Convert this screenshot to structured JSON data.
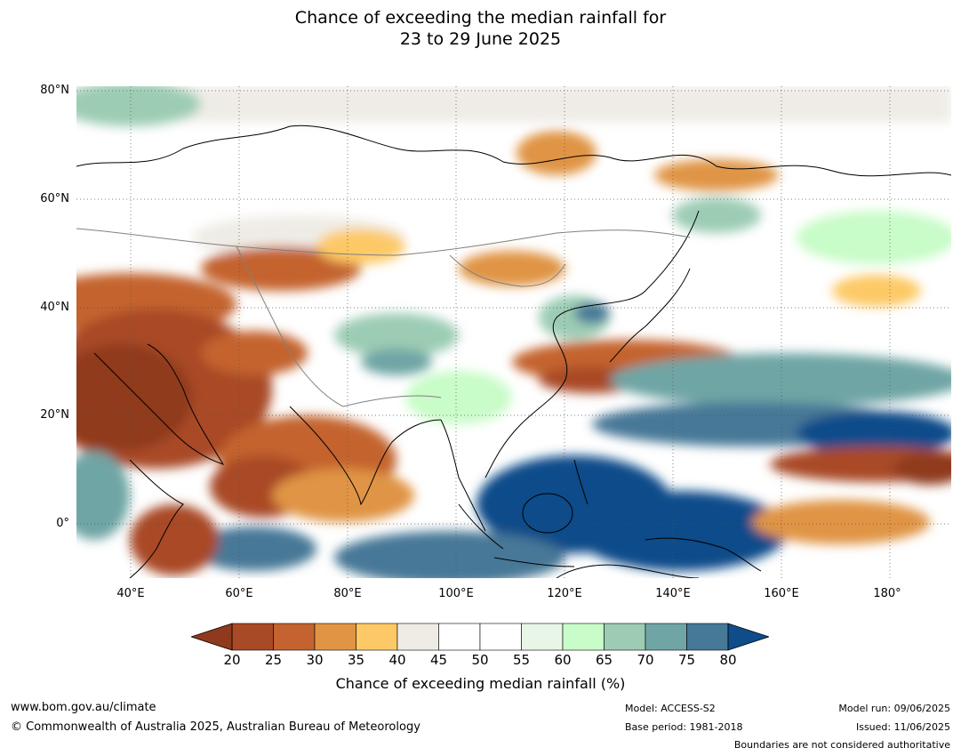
{
  "title": {
    "line1": "Chance of exceeding the median rainfall for",
    "line2": "23 to 29 June 2025"
  },
  "map": {
    "lat_labels": [
      "80°N",
      "60°N",
      "40°N",
      "20°N",
      "0°"
    ],
    "lon_labels": [
      "40°E",
      "60°E",
      "80°E",
      "100°E",
      "120°E",
      "140°E",
      "160°E",
      "180°"
    ],
    "land_color": "#ffffff",
    "coastline_color": "#000000",
    "border_color": "#808080",
    "grid": "dotted"
  },
  "colorbar": {
    "ticks": [
      "20",
      "25",
      "30",
      "35",
      "40",
      "45",
      "50",
      "55",
      "60",
      "65",
      "70",
      "75",
      "80"
    ],
    "under_color": "#8f3a1e",
    "over_color": "#0f4c8a",
    "colors": [
      "#a94a26",
      "#c4632f",
      "#e09444",
      "#fdc966",
      "#efece6",
      "#ffffff",
      "#ffffff",
      "#e8f6e8",
      "#c8fcc8",
      "#9cccb4",
      "#6fa5a5",
      "#467897"
    ],
    "label": "Chance of exceeding median rainfall (%)"
  },
  "footer": {
    "url": "www.bom.gov.au/climate",
    "copyright": "© Commonwealth of Australia 2025, Australian Bureau of Meteorology",
    "model": "Model: ACCESS-S2",
    "base_period": "Base period: 1981-2018",
    "model_run": "Model run: 09/06/2025",
    "issued": "Issued: 11/06/2025",
    "disclaimer": "Boundaries are not considered authoritative"
  }
}
